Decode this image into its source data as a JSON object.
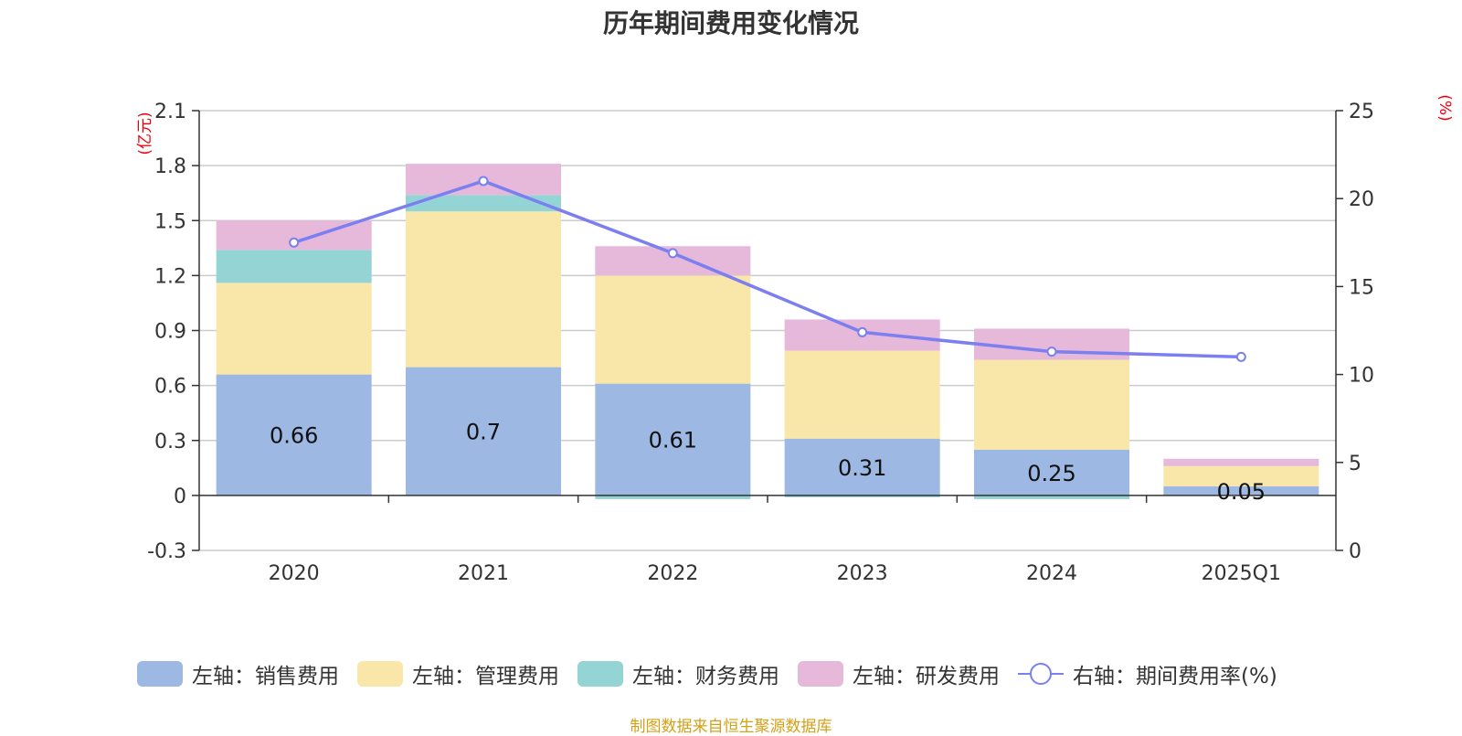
{
  "chart_data": {
    "type": "bar",
    "title": "历年期间费用变化情况",
    "categories": [
      "2020",
      "2021",
      "2022",
      "2023",
      "2024",
      "2025Q1"
    ],
    "left_axis": {
      "unit": "(亿元)",
      "ylim": [
        -0.3,
        2.1
      ],
      "ticks": [
        "2.1",
        "1.8",
        "1.5",
        "1.2",
        "0.9",
        "0.6",
        "0.3",
        "0",
        "-0.3"
      ]
    },
    "right_axis": {
      "unit": "(%)",
      "ylim": [
        0,
        25
      ],
      "ticks": [
        "25",
        "20",
        "15",
        "10",
        "5",
        "0"
      ]
    },
    "series": [
      {
        "name": "左轴：销售费用",
        "color": "#9db8e2",
        "values": [
          0.66,
          0.7,
          0.61,
          0.31,
          0.25,
          0.05
        ],
        "labels": [
          "0.66",
          "0.7",
          "0.61",
          "0.31",
          "0.25",
          "0.05"
        ]
      },
      {
        "name": "左轴：管理费用",
        "color": "#f8e7a8",
        "values": [
          0.5,
          0.85,
          0.59,
          0.48,
          0.49,
          0.11
        ]
      },
      {
        "name": "左轴：财务费用",
        "color": "#95d4d4",
        "values": [
          0.18,
          0.09,
          -0.02,
          -0.01,
          -0.02,
          0.0
        ]
      },
      {
        "name": "左轴：研发费用",
        "color": "#e6b8da",
        "values": [
          0.16,
          0.17,
          0.16,
          0.17,
          0.17,
          0.04
        ]
      }
    ],
    "line_series": {
      "name": "右轴：期间费用率(%)",
      "color": "#7b7ff0",
      "values": [
        17.5,
        21.0,
        16.9,
        12.4,
        11.3,
        11.0
      ]
    }
  },
  "source_note": "制图数据来自恒生聚源数据库"
}
